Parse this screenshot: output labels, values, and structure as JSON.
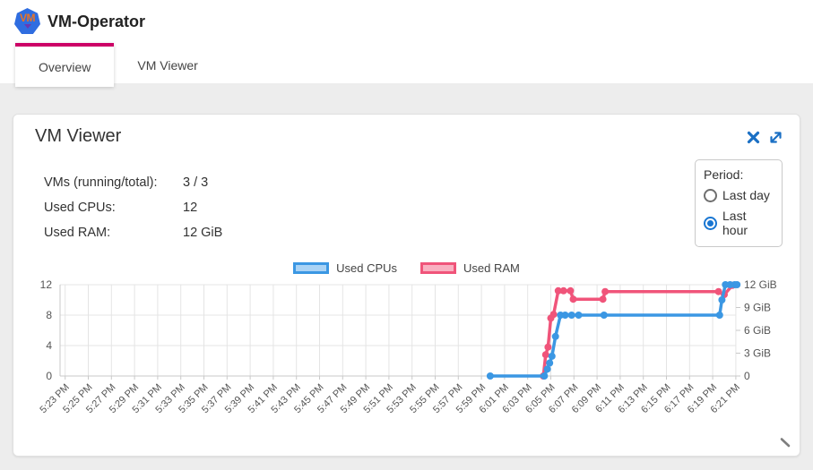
{
  "header": {
    "title": "VM-Operator",
    "logo_text": "VM"
  },
  "tabs": [
    {
      "label": "Overview",
      "active": true
    },
    {
      "label": "VM Viewer",
      "active": false
    }
  ],
  "card": {
    "title": "VM Viewer",
    "icons": [
      "close",
      "expand"
    ],
    "stats": [
      {
        "label": "VMs (running/total):",
        "value": "3 / 3"
      },
      {
        "label": "Used CPUs:",
        "value": "12"
      },
      {
        "label": "Used RAM:",
        "value": "12 GiB"
      }
    ],
    "period": {
      "label": "Period:",
      "options": [
        {
          "label": "Last day",
          "selected": false
        },
        {
          "label": "Last hour",
          "selected": true
        }
      ]
    }
  },
  "legend": [
    {
      "label": "Used CPUs",
      "color": "#3b97e3",
      "fill": "#aad3f5"
    },
    {
      "label": "Used RAM",
      "color": "#f0547a",
      "fill": "#f9b0c1"
    }
  ],
  "colors": {
    "tab_highlight": "#cc0066",
    "icon_blue": "#1a6fc4",
    "radio_checked": "#1976d2",
    "grid": "#e4e4e4",
    "axis": "#c9c9c9",
    "tick_text": "#555555"
  },
  "chart_data": {
    "type": "line",
    "x_tick_labels": [
      "5:23 PM",
      "5:25 PM",
      "5:27 PM",
      "5:29 PM",
      "5:31 PM",
      "5:33 PM",
      "5:35 PM",
      "5:37 PM",
      "5:39 PM",
      "5:41 PM",
      "5:43 PM",
      "5:45 PM",
      "5:47 PM",
      "5:49 PM",
      "5:51 PM",
      "5:53 PM",
      "5:55 PM",
      "5:57 PM",
      "5:59 PM",
      "6:01 PM",
      "6:03 PM",
      "6:05 PM",
      "6:07 PM",
      "6:09 PM",
      "6:11 PM",
      "6:13 PM",
      "6:15 PM",
      "6:17 PM",
      "6:19 PM",
      "6:21 PM"
    ],
    "left_axis": {
      "tick_values": [
        0,
        4,
        8,
        12
      ],
      "tick_labels": [
        "0",
        "4",
        "8",
        "12"
      ],
      "range": [
        0,
        12
      ]
    },
    "right_axis": {
      "tick_values": [
        0,
        3,
        6,
        9,
        12
      ],
      "tick_labels": [
        "0",
        "3 GiB",
        "6 GiB",
        "9 GiB",
        "12 GiB"
      ],
      "range": [
        0,
        12
      ]
    },
    "series": [
      {
        "name": "Used CPUs",
        "axis": "left",
        "color": "#3b97e3",
        "points": [
          [
            18.38,
            0
          ],
          [
            20.72,
            0
          ],
          [
            20.85,
            0.9
          ],
          [
            20.95,
            1.7
          ],
          [
            21.05,
            2.6
          ],
          [
            21.2,
            5.2
          ],
          [
            21.42,
            8
          ],
          [
            21.62,
            8
          ],
          [
            21.9,
            8
          ],
          [
            22.2,
            8
          ],
          [
            23.3,
            8
          ],
          [
            28.3,
            8
          ],
          [
            28.4,
            10
          ],
          [
            28.55,
            12
          ],
          [
            28.75,
            12
          ],
          [
            28.95,
            12
          ],
          [
            29.05,
            12
          ]
        ]
      },
      {
        "name": "Used RAM",
        "axis": "right",
        "color": "#f0547a",
        "points": [
          [
            20.68,
            0
          ],
          [
            20.78,
            2.8
          ],
          [
            20.88,
            3.8
          ],
          [
            21.0,
            7.6
          ],
          [
            21.12,
            8.1
          ],
          [
            21.32,
            11.2
          ],
          [
            21.55,
            11.2
          ],
          [
            21.85,
            11.2
          ],
          [
            21.97,
            10.1
          ],
          [
            23.25,
            10.1
          ],
          [
            23.35,
            11.1
          ],
          [
            28.25,
            11.1
          ],
          [
            28.5,
            10.7
          ],
          [
            28.85,
            11.9
          ]
        ]
      }
    ]
  }
}
